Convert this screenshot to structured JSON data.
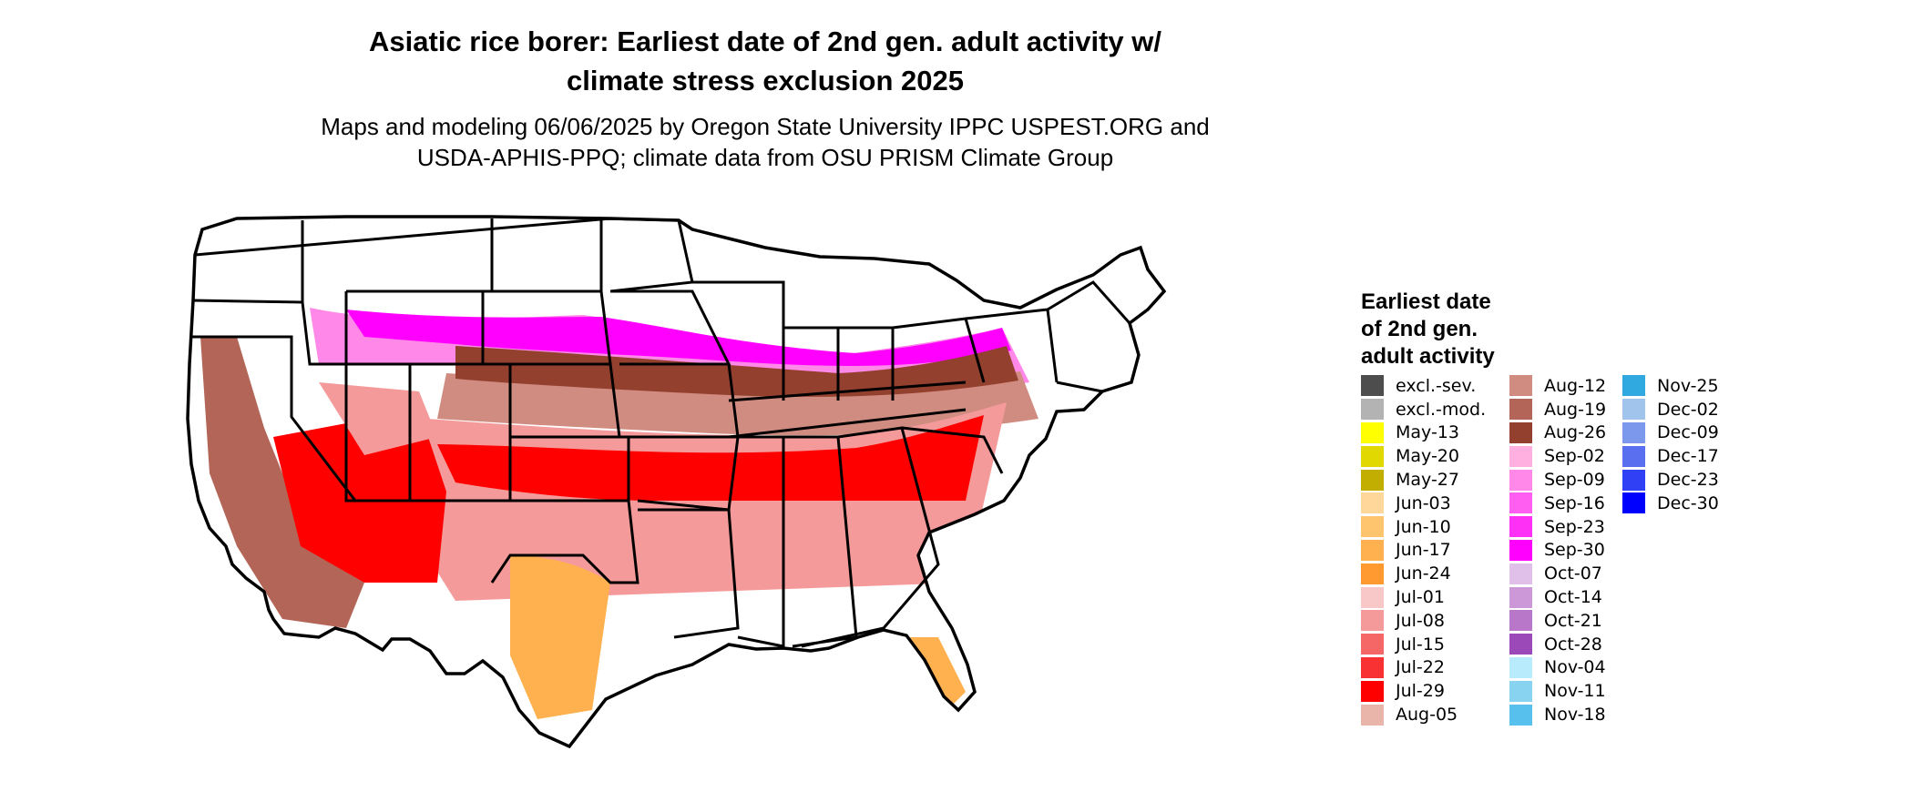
{
  "title_line1": "Asiatic rice borer: Earliest date of 2nd gen. adult activity w/",
  "title_line2": "climate stress exclusion 2025",
  "subtitle_line1": "Maps and modeling 06/06/2025 by Oregon State University IPPC USPEST.ORG and",
  "subtitle_line2": "USDA-APHIS-PPQ; climate data from OSU PRISM Climate Group",
  "legend": {
    "title_line1": "Earliest date",
    "title_line2": "of 2nd gen.",
    "title_line3": "adult activity",
    "columns": [
      [
        {
          "label": "excl.-sev.",
          "color": "#4d4d4d"
        },
        {
          "label": "excl.-mod.",
          "color": "#b3b3b3"
        },
        {
          "label": "May-13",
          "color": "#ffff00"
        },
        {
          "label": "May-20",
          "color": "#e0d800"
        },
        {
          "label": "May-27",
          "color": "#c2ae00"
        },
        {
          "label": "Jun-03",
          "color": "#ffd79a"
        },
        {
          "label": "Jun-10",
          "color": "#ffc46e"
        },
        {
          "label": "Jun-17",
          "color": "#ffb04f"
        },
        {
          "label": "Jun-24",
          "color": "#ff9a30"
        },
        {
          "label": "Jul-01",
          "color": "#f8c8c8"
        },
        {
          "label": "Jul-08",
          "color": "#f59a9a"
        },
        {
          "label": "Jul-15",
          "color": "#f56666"
        },
        {
          "label": "Jul-22",
          "color": "#f83232"
        },
        {
          "label": "Jul-29",
          "color": "#ff0000"
        },
        {
          "label": "Aug-05",
          "color": "#e9b4aa"
        }
      ],
      [
        {
          "label": "Aug-12",
          "color": "#d08c80"
        },
        {
          "label": "Aug-19",
          "color": "#b36658"
        },
        {
          "label": "Aug-26",
          "color": "#94402f"
        },
        {
          "label": "Sep-02",
          "color": "#ffb0e0"
        },
        {
          "label": "Sep-09",
          "color": "#ff88e8"
        },
        {
          "label": "Sep-16",
          "color": "#ff5ef0"
        },
        {
          "label": "Sep-23",
          "color": "#ff30f6"
        },
        {
          "label": "Sep-30",
          "color": "#ff00ff"
        },
        {
          "label": "Oct-07",
          "color": "#e0c0e8"
        },
        {
          "label": "Oct-14",
          "color": "#cc98d8"
        },
        {
          "label": "Oct-21",
          "color": "#b877c8"
        },
        {
          "label": "Oct-28",
          "color": "#9b48b8"
        },
        {
          "label": "Nov-04",
          "color": "#b8ecfc"
        },
        {
          "label": "Nov-11",
          "color": "#88d4f0"
        },
        {
          "label": "Nov-18",
          "color": "#58c0ec"
        }
      ],
      [
        {
          "label": "Nov-25",
          "color": "#30a8e0"
        },
        {
          "label": "Dec-02",
          "color": "#a0c4ec"
        },
        {
          "label": "Dec-09",
          "color": "#7c98ec"
        },
        {
          "label": "Dec-17",
          "color": "#5a6ef0"
        },
        {
          "label": "Dec-23",
          "color": "#3040f4"
        },
        {
          "label": "Dec-30",
          "color": "#0000ff"
        }
      ]
    ]
  },
  "map_colors": {
    "outline": "#000000",
    "desert_brown": "#b36658",
    "south_red": "#ff0000",
    "south_pink": "#f59a9a",
    "mid_brown": "#94402f",
    "mid_tan": "#d08c80",
    "north_magenta": "#ff00ff",
    "north_pink": "#ff88e8",
    "texas_orange": "#ffb04f",
    "florida_yellow": "#c2ae00"
  }
}
